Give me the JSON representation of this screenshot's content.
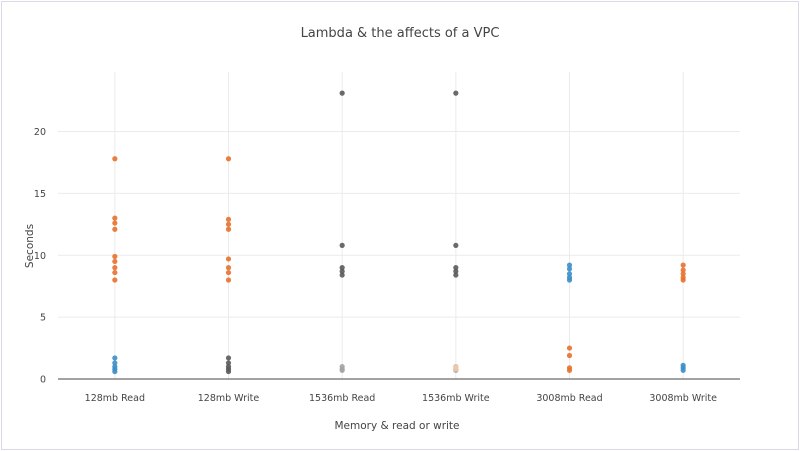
{
  "chart_data": {
    "type": "scatter",
    "title": "Lambda & the affects of a VPC",
    "xlabel": "Memory & read or write",
    "ylabel": "Seconds",
    "categories": [
      "128mb Read",
      "128mb Write",
      "1536mb Read",
      "1536mb Write",
      "3008mb Read",
      "3008mb Write"
    ],
    "ylim": [
      0,
      24
    ],
    "yticks": [
      0,
      5,
      10,
      15,
      20
    ],
    "grid": true,
    "legend": "none",
    "series": [
      {
        "color": "#e8712d",
        "points": [
          [
            "128mb Read",
            17.8
          ],
          [
            "128mb Read",
            13.0
          ],
          [
            "128mb Read",
            12.6
          ],
          [
            "128mb Read",
            12.1
          ],
          [
            "128mb Read",
            9.9
          ],
          [
            "128mb Read",
            9.5
          ],
          [
            "128mb Read",
            9.0
          ],
          [
            "128mb Read",
            8.6
          ],
          [
            "128mb Read",
            8.0
          ],
          [
            "128mb Write",
            17.8
          ],
          [
            "128mb Write",
            12.9
          ],
          [
            "128mb Write",
            12.5
          ],
          [
            "128mb Write",
            12.1
          ],
          [
            "128mb Write",
            9.7
          ],
          [
            "128mb Write",
            9.0
          ],
          [
            "128mb Write",
            8.6
          ],
          [
            "128mb Write",
            8.0
          ],
          [
            "3008mb Read",
            2.5
          ],
          [
            "3008mb Read",
            1.9
          ],
          [
            "3008mb Read",
            0.9
          ],
          [
            "3008mb Read",
            0.7
          ],
          [
            "3008mb Write",
            9.2
          ],
          [
            "3008mb Write",
            8.8
          ],
          [
            "3008mb Write",
            8.5
          ],
          [
            "3008mb Write",
            8.2
          ],
          [
            "3008mb Write",
            8.0
          ]
        ]
      },
      {
        "color": "#3d8ec7",
        "points": [
          [
            "128mb Read",
            1.7
          ],
          [
            "128mb Read",
            1.3
          ],
          [
            "128mb Read",
            1.0
          ],
          [
            "128mb Read",
            0.8
          ],
          [
            "128mb Read",
            0.6
          ],
          [
            "3008mb Read",
            9.2
          ],
          [
            "3008mb Read",
            8.9
          ],
          [
            "3008mb Read",
            8.5
          ],
          [
            "3008mb Read",
            8.2
          ],
          [
            "3008mb Read",
            8.0
          ],
          [
            "3008mb Write",
            1.1
          ],
          [
            "3008mb Write",
            0.9
          ],
          [
            "3008mb Write",
            0.7
          ]
        ]
      },
      {
        "color": "#5a5a5a",
        "points": [
          [
            "128mb Write",
            1.7
          ],
          [
            "128mb Write",
            1.3
          ],
          [
            "128mb Write",
            1.0
          ],
          [
            "128mb Write",
            0.8
          ],
          [
            "128mb Write",
            0.6
          ],
          [
            "1536mb Read",
            23.1
          ],
          [
            "1536mb Read",
            10.8
          ],
          [
            "1536mb Read",
            9.0
          ],
          [
            "1536mb Read",
            8.7
          ],
          [
            "1536mb Read",
            8.4
          ],
          [
            "1536mb Write",
            23.1
          ],
          [
            "1536mb Write",
            10.8
          ],
          [
            "1536mb Write",
            9.0
          ],
          [
            "1536mb Write",
            8.7
          ],
          [
            "1536mb Write",
            8.4
          ]
        ]
      },
      {
        "color": "#a3a3a3",
        "points": [
          [
            "1536mb Read",
            1.0
          ],
          [
            "1536mb Read",
            0.8
          ],
          [
            "1536mb Read",
            0.7
          ],
          [
            "1536mb Write",
            1.0
          ],
          [
            "1536mb Write",
            0.8
          ],
          [
            "1536mb Write",
            0.7
          ]
        ]
      },
      {
        "color": "#f0c8a8",
        "points": [
          [
            "1536mb Write",
            1.0
          ],
          [
            "1536mb Write",
            0.8
          ]
        ]
      }
    ]
  }
}
